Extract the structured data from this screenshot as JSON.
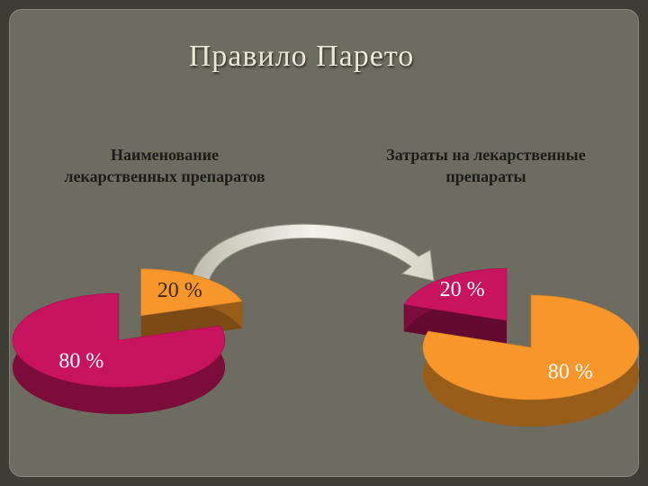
{
  "title": "Правило Парето",
  "chart_data": [
    {
      "type": "pie",
      "title": "Наименование\nлекарственных препаратов",
      "values": [
        20,
        80
      ],
      "value_labels": [
        "20 %",
        "80 %"
      ],
      "colors": [
        "#f7962a",
        "#c8135e"
      ]
    },
    {
      "type": "pie",
      "title": "Затраты на лекарственные\nпрепараты",
      "values": [
        20,
        80
      ],
      "value_labels": [
        "20 %",
        "80 %"
      ],
      "colors": [
        "#c8135e",
        "#f7962a"
      ]
    }
  ]
}
